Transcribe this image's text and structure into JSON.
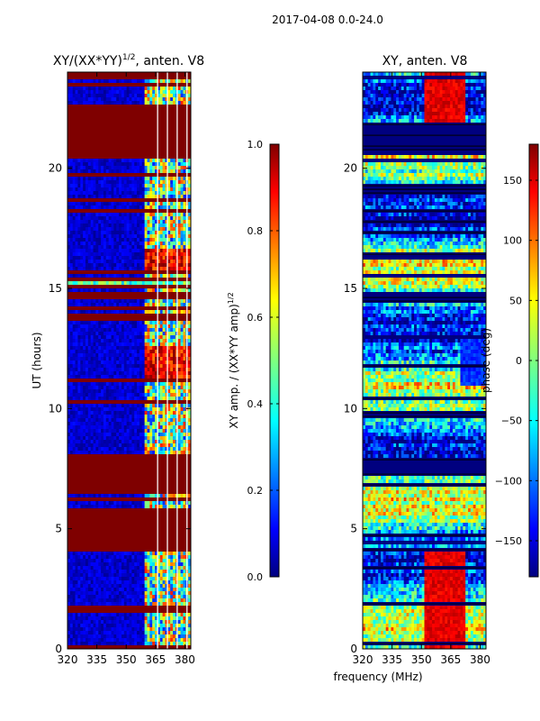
{
  "figure": {
    "suptitle": "2017-04-08 0.0-24.0",
    "xlabel_shared": "frequency (MHz)"
  },
  "colors": {
    "jet_dark_blue": "#00007f",
    "jet_blue": "#0000ff",
    "jet_cyan": "#00ffff",
    "jet_yellow": "#ffff00",
    "jet_red": "#ff0000",
    "jet_dark_red": "#7f0000",
    "frame": "#000000"
  },
  "chart_data": [
    {
      "type": "heatmap",
      "title_text": "XY/(XX*YY)",
      "title_exp": "1/2",
      "title_suffix": ", anten. V8",
      "xlabel": "",
      "ylabel": "UT (hours)",
      "xlim": [
        320,
        383
      ],
      "ylim": [
        0,
        24
      ],
      "xticks": [
        320,
        335,
        350,
        365,
        380
      ],
      "yticks": [
        0,
        5,
        10,
        15,
        20
      ],
      "colormap": "jet",
      "colorbar": {
        "label_text": "XY amp. / (XX*YY amp)",
        "label_exp": "1/2",
        "range": [
          0.0,
          1.0
        ],
        "ticks": [
          "0.0",
          "0.2",
          "0.4",
          "0.6",
          "0.8",
          "1.0"
        ]
      },
      "saturated_bands_hours": [
        [
          0,
          0.1
        ],
        [
          4.1,
          5.9
        ],
        [
          6.4,
          8.1
        ],
        [
          14.5,
          14.8
        ],
        [
          20.4,
          21.4
        ],
        [
          21.4,
          22.6
        ],
        [
          23.7,
          24
        ]
      ],
      "active_frequency_band_mhz": [
        360,
        383
      ]
    },
    {
      "type": "heatmap",
      "title": "XY, anten. V8",
      "xlabel": "",
      "ylabel": "",
      "xlim": [
        320,
        383
      ],
      "ylim": [
        0,
        24
      ],
      "xticks": [
        320,
        335,
        350,
        365,
        380
      ],
      "yticks": [
        0,
        5,
        10,
        15,
        20
      ],
      "colormap": "jet",
      "colorbar": {
        "label": "phase (deg)",
        "range": [
          -180,
          180
        ],
        "ticks": [
          "150",
          "100",
          "50",
          "0",
          "−50",
          "−100",
          "−150"
        ]
      },
      "blank_bands_hours": [
        [
          20.6,
          21.6
        ],
        [
          7.2,
          8.0
        ],
        [
          14.5,
          14.9
        ]
      ]
    }
  ]
}
